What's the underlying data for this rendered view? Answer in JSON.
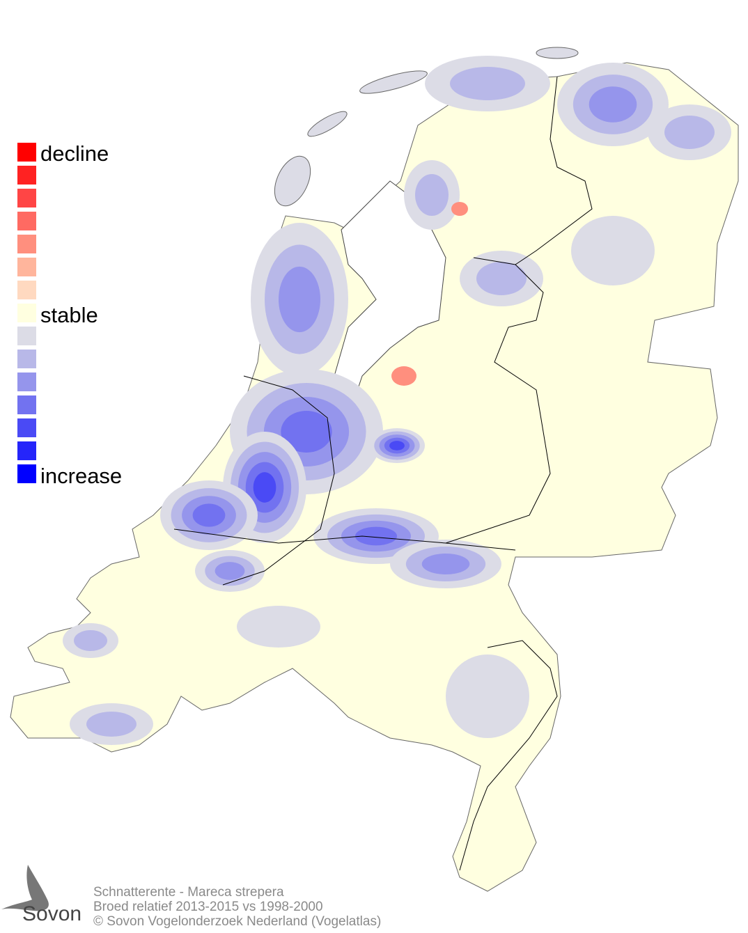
{
  "legend": {
    "labels": {
      "top": "decline",
      "middle": "stable",
      "bottom": "increase"
    },
    "colors": [
      "#ff0000",
      "#ff2222",
      "#ff4545",
      "#ff6a62",
      "#ff8f7e",
      "#ffb59c",
      "#ffd9c0",
      "#ffffe0",
      "#dcdce6",
      "#b8b8e8",
      "#9595ec",
      "#7272f0",
      "#4a4af5",
      "#2525fa",
      "#0000ff"
    ]
  },
  "map": {
    "land_color": "#ffffe0",
    "water_color": "#ffffff",
    "border_color": "#000000"
  },
  "footer": {
    "line1": "Schnatterente - Mareca strepera",
    "line2": "Broed relatief 2013-2015 vs 1998-2000",
    "line3": "© Sovon Vogelonderzoek Nederland (Vogelatlas)"
  },
  "logo": {
    "text": "Sovon",
    "icon": "swallow-icon"
  }
}
